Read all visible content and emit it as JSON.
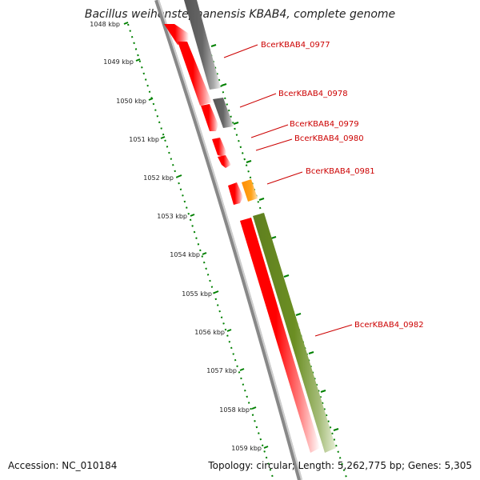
{
  "title": "Bacillus weihenstephanensis KBAB4, complete genome",
  "accession": "Accession: NC_010184",
  "summary": "Topology: circular; Length: 5,262,775 bp; Genes: 5,305",
  "kbp_labels": [
    "1048 kbp",
    "1049 kbp",
    "1050 kbp",
    "1051 kbp",
    "1052 kbp",
    "1053 kbp",
    "1054 kbp",
    "1055 kbp",
    "1056 kbp",
    "1057 kbp",
    "1058 kbp",
    "1059 kbp"
  ],
  "gene_labels": [
    "BcerKBAB4_0977",
    "BcerKBAB4_0978",
    "BcerKBAB4_0979",
    "BcerKBAB4_0980",
    "BcerKBAB4_0981",
    "BcerKBAB4_0982"
  ],
  "colors": {
    "cds": "#ff0000",
    "gray_feature": "#666666",
    "orange_feature": "#ff9900",
    "olive_feature": "#6b8e23",
    "backbone": "#888888",
    "ticks": "#008000",
    "label": "#cc0000"
  }
}
